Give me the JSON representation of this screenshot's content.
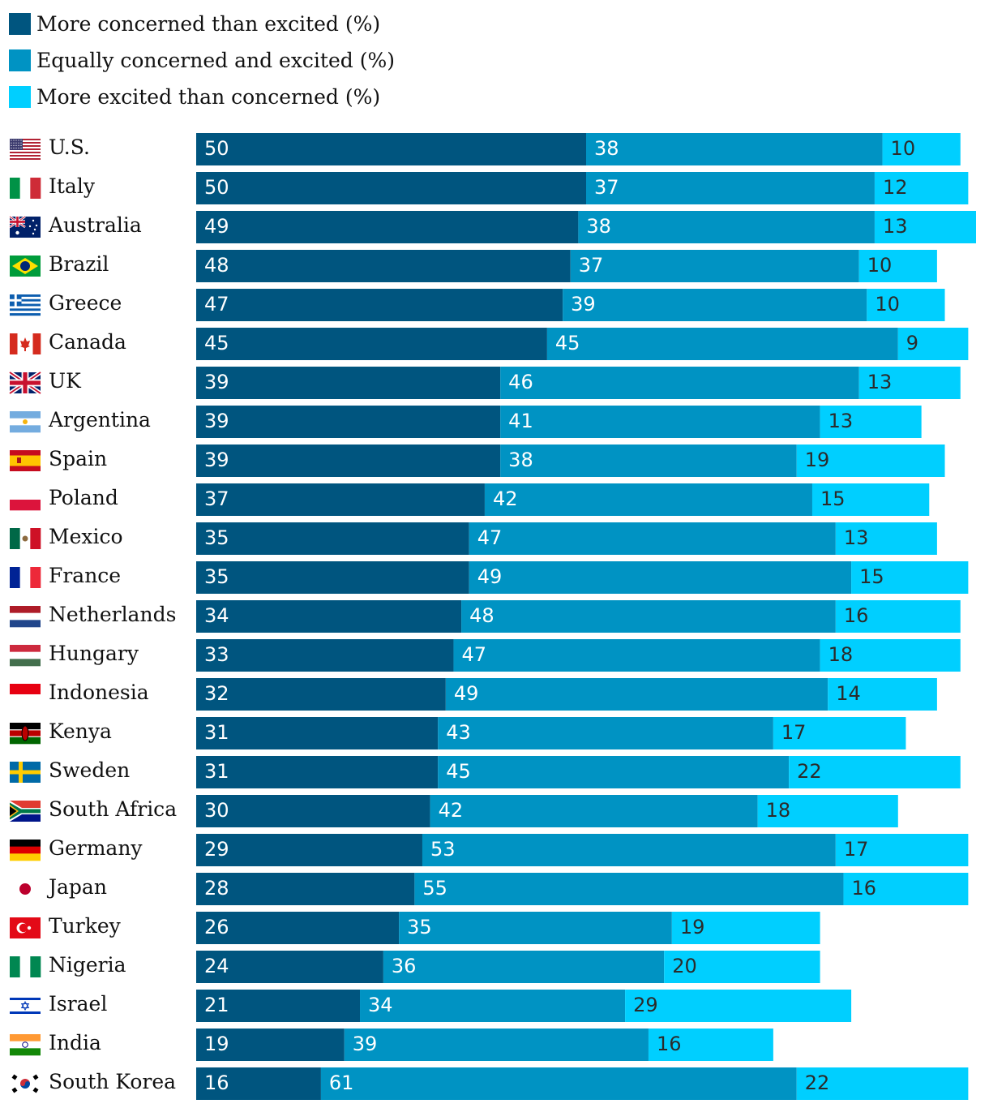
{
  "colors": {
    "concerned": "#00557f",
    "equally": "#0093c3",
    "excited": "#00cfff",
    "label_light": "#ffffff",
    "label_dark": "#2b2b2b"
  },
  "legend": [
    {
      "label": "More concerned than excited (%)",
      "color": "#00557f"
    },
    {
      "label": "Equally concerned and excited (%)",
      "color": "#0093c3"
    },
    {
      "label": "More excited than concerned (%)",
      "color": "#00cfff"
    }
  ],
  "chart_data": {
    "type": "bar",
    "orientation": "horizontal",
    "stacked": true,
    "categories": [
      "U.S.",
      "Italy",
      "Australia",
      "Brazil",
      "Greece",
      "Canada",
      "UK",
      "Argentina",
      "Spain",
      "Poland",
      "Mexico",
      "France",
      "Netherlands",
      "Hungary",
      "Indonesia",
      "Kenya",
      "Sweden",
      "South Africa",
      "Germany",
      "Japan",
      "Turkey",
      "Nigeria",
      "Israel",
      "India",
      "South Korea"
    ],
    "series": [
      {
        "name": "More concerned than excited (%)",
        "color": "#00557f",
        "values": [
          50,
          50,
          49,
          48,
          47,
          45,
          39,
          39,
          39,
          37,
          35,
          35,
          34,
          33,
          32,
          31,
          31,
          30,
          29,
          28,
          26,
          24,
          21,
          19,
          16
        ]
      },
      {
        "name": "Equally concerned and excited (%)",
        "color": "#0093c3",
        "values": [
          38,
          37,
          38,
          37,
          39,
          45,
          46,
          41,
          38,
          42,
          47,
          49,
          48,
          47,
          49,
          43,
          45,
          42,
          53,
          55,
          35,
          36,
          34,
          39,
          61
        ]
      },
      {
        "name": "More excited than concerned (%)",
        "color": "#00cfff",
        "values": [
          10,
          12,
          13,
          10,
          10,
          9,
          13,
          13,
          19,
          15,
          13,
          15,
          16,
          18,
          14,
          17,
          22,
          18,
          17,
          16,
          19,
          20,
          29,
          16,
          22
        ]
      }
    ],
    "xlim": [
      0,
      100
    ],
    "grid": false,
    "legend_position": "top-left"
  },
  "flags": [
    "us-flag-icon",
    "italy-flag-icon",
    "australia-flag-icon",
    "brazil-flag-icon",
    "greece-flag-icon",
    "canada-flag-icon",
    "uk-flag-icon",
    "argentina-flag-icon",
    "spain-flag-icon",
    "poland-flag-icon",
    "mexico-flag-icon",
    "france-flag-icon",
    "netherlands-flag-icon",
    "hungary-flag-icon",
    "indonesia-flag-icon",
    "kenya-flag-icon",
    "sweden-flag-icon",
    "south-africa-flag-icon",
    "germany-flag-icon",
    "japan-flag-icon",
    "turkey-flag-icon",
    "nigeria-flag-icon",
    "israel-flag-icon",
    "india-flag-icon",
    "south-korea-flag-icon"
  ]
}
